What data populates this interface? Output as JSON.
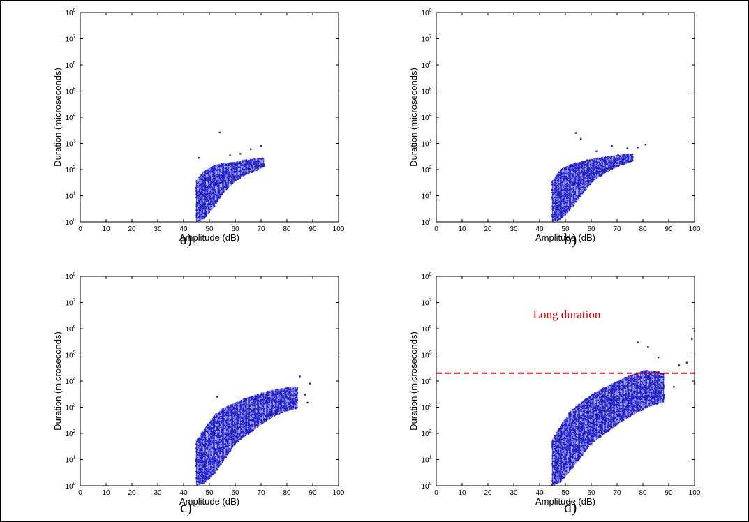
{
  "chart_data": [
    {
      "type": "scatter",
      "panel_label": "a)",
      "xlabel": "Amplitude (dB)",
      "ylabel": "Duration (microseconds)",
      "xlim": [
        0,
        100
      ],
      "ylim": [
        1,
        100000000
      ],
      "yscale": "log",
      "xticks": [
        "0",
        "10",
        "20",
        "30",
        "40",
        "50",
        "60",
        "70",
        "80",
        "90",
        "100"
      ],
      "yticks": [
        {
          "base": "10",
          "exp": "0"
        },
        {
          "base": "10",
          "exp": "1"
        },
        {
          "base": "10",
          "exp": "2"
        },
        {
          "base": "10",
          "exp": "3"
        },
        {
          "base": "10",
          "exp": "4"
        },
        {
          "base": "10",
          "exp": "5"
        },
        {
          "base": "10",
          "exp": "6"
        },
        {
          "base": "10",
          "exp": "7"
        },
        {
          "base": "10",
          "exp": "8"
        }
      ],
      "grid": false,
      "marker_color": "#2222cc",
      "envelope": {
        "amplitude": [
          45,
          48,
          52,
          56,
          60,
          64,
          68,
          71
        ],
        "duration_low": [
          1,
          1.3,
          4,
          15,
          35,
          60,
          90,
          120
        ],
        "duration_high": [
          40,
          90,
          150,
          180,
          200,
          230,
          260,
          280
        ]
      },
      "outliers": [
        [
          54,
          2600
        ],
        [
          46,
          280
        ],
        [
          66,
          600
        ],
        [
          70,
          800
        ],
        [
          62,
          400
        ],
        [
          58,
          350
        ]
      ]
    },
    {
      "type": "scatter",
      "panel_label": "b)",
      "xlabel": "Amplitude (dB)",
      "ylabel": "Duration (microseconds)",
      "xlim": [
        0,
        100
      ],
      "ylim": [
        1,
        100000000
      ],
      "yscale": "log",
      "xticks": [
        "0",
        "10",
        "20",
        "30",
        "40",
        "50",
        "60",
        "70",
        "80",
        "90",
        "100"
      ],
      "yticks": [
        {
          "base": "10",
          "exp": "0"
        },
        {
          "base": "10",
          "exp": "1"
        },
        {
          "base": "10",
          "exp": "2"
        },
        {
          "base": "10",
          "exp": "3"
        },
        {
          "base": "10",
          "exp": "4"
        },
        {
          "base": "10",
          "exp": "5"
        },
        {
          "base": "10",
          "exp": "6"
        },
        {
          "base": "10",
          "exp": "7"
        },
        {
          "base": "10",
          "exp": "8"
        }
      ],
      "grid": false,
      "marker_color": "#2222cc",
      "envelope": {
        "amplitude": [
          45,
          48,
          52,
          56,
          60,
          64,
          68,
          72,
          76
        ],
        "duration_low": [
          1,
          1.2,
          3,
          10,
          30,
          60,
          100,
          150,
          200
        ],
        "duration_high": [
          40,
          100,
          160,
          200,
          250,
          300,
          340,
          380,
          400
        ]
      },
      "outliers": [
        [
          54,
          2500
        ],
        [
          56,
          1500
        ],
        [
          81,
          900
        ],
        [
          78,
          700
        ],
        [
          74,
          650
        ],
        [
          68,
          800
        ],
        [
          62,
          500
        ]
      ]
    },
    {
      "type": "scatter",
      "panel_label": "c)",
      "xlabel": "Amplitude (dB)",
      "ylabel": "Duration (microseconds)",
      "xlim": [
        0,
        100
      ],
      "ylim": [
        1,
        100000000
      ],
      "yscale": "log",
      "xticks": [
        "0",
        "10",
        "20",
        "30",
        "40",
        "50",
        "60",
        "70",
        "80",
        "90",
        "100"
      ],
      "yticks": [
        {
          "base": "10",
          "exp": "0"
        },
        {
          "base": "10",
          "exp": "1"
        },
        {
          "base": "10",
          "exp": "2"
        },
        {
          "base": "10",
          "exp": "3"
        },
        {
          "base": "10",
          "exp": "4"
        },
        {
          "base": "10",
          "exp": "5"
        },
        {
          "base": "10",
          "exp": "6"
        },
        {
          "base": "10",
          "exp": "7"
        },
        {
          "base": "10",
          "exp": "8"
        }
      ],
      "grid": false,
      "marker_color": "#2222cc",
      "envelope": {
        "amplitude": [
          45,
          48,
          52,
          56,
          60,
          64,
          68,
          72,
          76,
          80,
          84
        ],
        "duration_low": [
          1,
          1.2,
          3,
          10,
          40,
          80,
          150,
          300,
          500,
          700,
          900
        ],
        "duration_high": [
          50,
          150,
          500,
          1000,
          1500,
          2200,
          3000,
          4000,
          5000,
          5500,
          6000
        ]
      },
      "outliers": [
        [
          85,
          15000
        ],
        [
          89,
          8000
        ],
        [
          87,
          3000
        ],
        [
          88,
          1500
        ],
        [
          53,
          2500
        ],
        [
          82,
          4000
        ]
      ]
    },
    {
      "type": "scatter",
      "panel_label": "d)",
      "xlabel": "Amplitude (dB)",
      "ylabel": "Duration (microseconds)",
      "xlim": [
        0,
        100
      ],
      "ylim": [
        1,
        100000000
      ],
      "yscale": "log",
      "xticks": [
        "0",
        "10",
        "20",
        "30",
        "40",
        "50",
        "60",
        "70",
        "80",
        "90",
        "100"
      ],
      "yticks": [
        {
          "base": "10",
          "exp": "0"
        },
        {
          "base": "10",
          "exp": "1"
        },
        {
          "base": "10",
          "exp": "2"
        },
        {
          "base": "10",
          "exp": "3"
        },
        {
          "base": "10",
          "exp": "4"
        },
        {
          "base": "10",
          "exp": "5"
        },
        {
          "base": "10",
          "exp": "6"
        },
        {
          "base": "10",
          "exp": "7"
        },
        {
          "base": "10",
          "exp": "8"
        }
      ],
      "grid": false,
      "marker_color": "#2222cc",
      "envelope": {
        "amplitude": [
          45,
          48,
          52,
          56,
          60,
          64,
          68,
          72,
          76,
          80,
          84,
          88
        ],
        "duration_low": [
          1,
          1.3,
          4,
          12,
          40,
          80,
          150,
          300,
          500,
          800,
          1200,
          1500
        ],
        "duration_high": [
          60,
          200,
          700,
          1500,
          3000,
          5000,
          8000,
          12000,
          18000,
          25000,
          25000,
          20000
        ]
      },
      "outliers": [
        [
          100,
          800000
        ],
        [
          99,
          400000
        ],
        [
          78,
          300000
        ],
        [
          82,
          200000
        ],
        [
          86,
          80000
        ],
        [
          94,
          40000
        ],
        [
          97,
          50000
        ],
        [
          100,
          20000
        ],
        [
          100,
          8000
        ],
        [
          92,
          6000
        ]
      ],
      "threshold": {
        "duration": 20000,
        "label": "Long duration",
        "color": "#e00000",
        "style": "dashed"
      }
    }
  ]
}
